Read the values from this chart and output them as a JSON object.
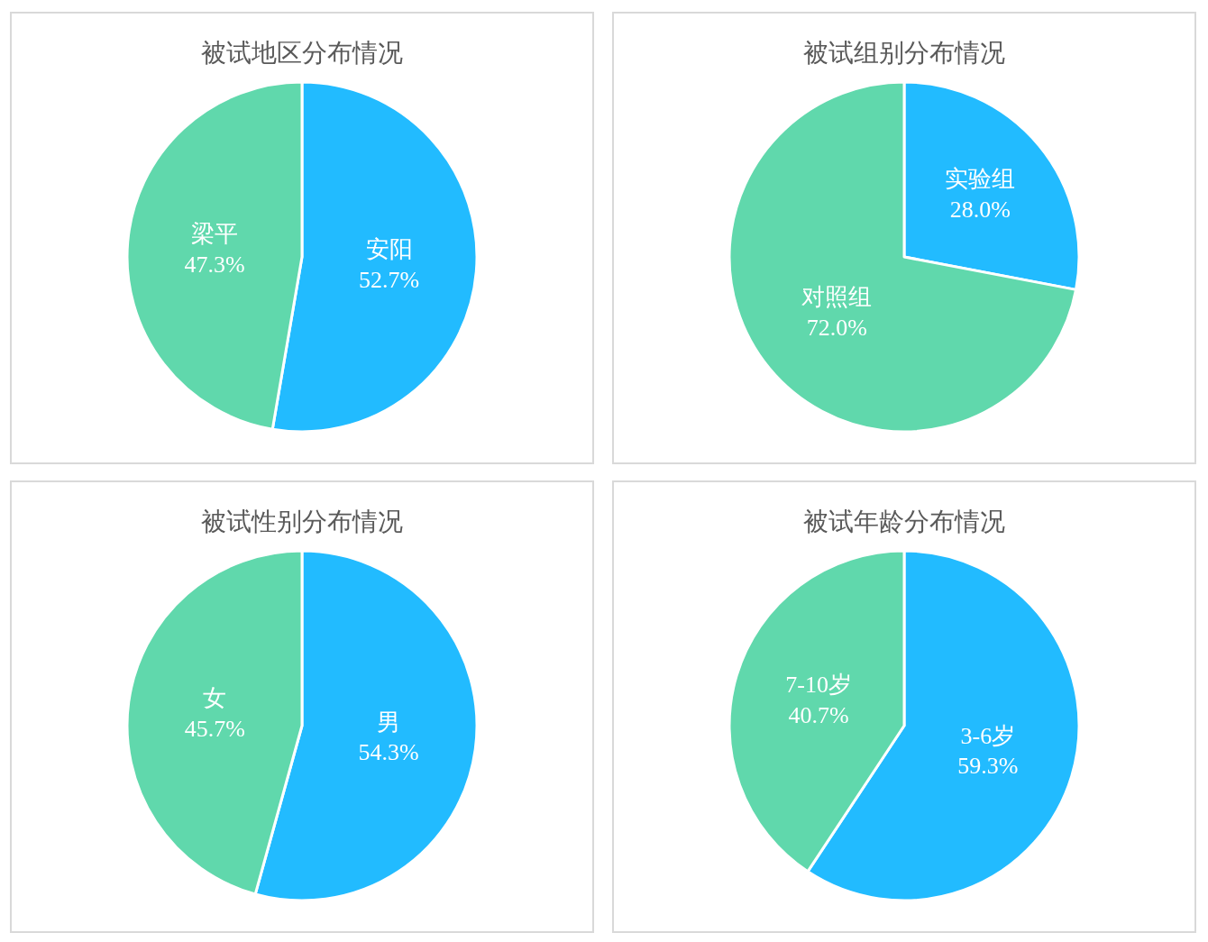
{
  "chart_data": [
    {
      "type": "pie",
      "title": "被试地区分布情况",
      "categories": [
        "安阳",
        "梁平"
      ],
      "values": [
        52.7,
        47.3
      ],
      "value_labels": [
        "52.7%",
        "47.3%"
      ],
      "colors": [
        "#22bbff",
        "#60d8ac"
      ]
    },
    {
      "type": "pie",
      "title": "被试组别分布情况",
      "categories": [
        "实验组",
        "对照组"
      ],
      "values": [
        28.0,
        72.0
      ],
      "value_labels": [
        "28.0%",
        "72.0%"
      ],
      "colors": [
        "#22bbff",
        "#60d8ac"
      ]
    },
    {
      "type": "pie",
      "title": "被试性别分布情况",
      "categories": [
        "男",
        "女"
      ],
      "values": [
        54.3,
        45.7
      ],
      "value_labels": [
        "54.3%",
        "45.7%"
      ],
      "colors": [
        "#22bbff",
        "#60d8ac"
      ]
    },
    {
      "type": "pie",
      "title": "被试年龄分布情况",
      "categories": [
        "3-6岁",
        "7-10岁"
      ],
      "values": [
        59.3,
        40.7
      ],
      "value_labels": [
        "59.3%",
        "40.7%"
      ],
      "colors": [
        "#22bbff",
        "#60d8ac"
      ]
    }
  ]
}
